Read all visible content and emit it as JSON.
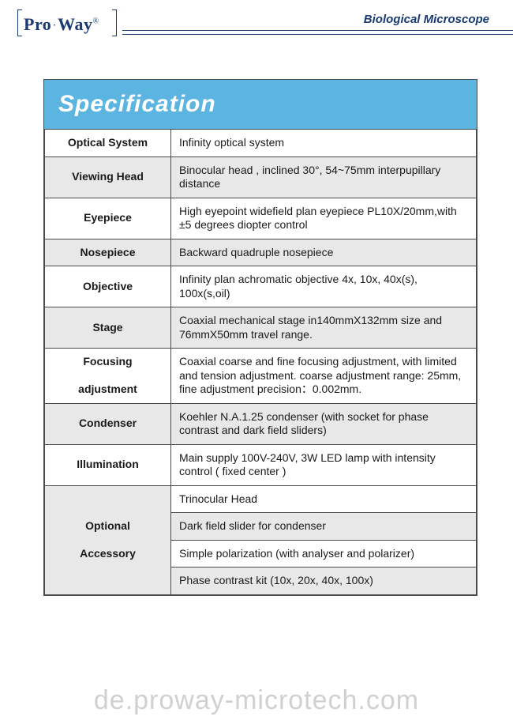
{
  "header": {
    "brand_part1": "Pro",
    "brand_dot": "·",
    "brand_part2": "Way",
    "brand_reg": "®",
    "title": "Biological Microscope"
  },
  "spec": {
    "heading": "Specification",
    "rows": [
      {
        "label": "Optical System",
        "value": "Infinity optical system",
        "label_bg": "#ffffff",
        "value_bg": "#ffffff"
      },
      {
        "label": "Viewing Head",
        "value": "Binocular head , inclined 30°, 54~75mm interpupillary distance",
        "label_bg": "#e8e8e8",
        "value_bg": "#e8e8e8"
      },
      {
        "label": "Eyepiece",
        "value": "High eyepoint widefield plan eyepiece PL10X/20mm,with ±5 degrees diopter control",
        "label_bg": "#ffffff",
        "value_bg": "#ffffff"
      },
      {
        "label": "Nosepiece",
        "value": "Backward quadruple nosepiece",
        "label_bg": "#e8e8e8",
        "value_bg": "#e8e8e8"
      },
      {
        "label": "Objective",
        "value": "Infinity plan achromatic objective 4x, 10x, 40x(s), 100x(s,oil)",
        "label_bg": "#ffffff",
        "value_bg": "#ffffff"
      },
      {
        "label": "Stage",
        "value": "Coaxial mechanical stage in140mmX132mm size and 76mmX50mm travel range.",
        "label_bg": "#e8e8e8",
        "value_bg": "#e8e8e8"
      },
      {
        "label": "Focusing\n\nadjustment",
        "value": "Coaxial coarse and fine focusing adjustment, with limited and tension adjustment. coarse adjustment range: 25mm, fine adjustment precision：0.002mm.",
        "label_bg": "#ffffff",
        "value_bg": "#ffffff"
      },
      {
        "label": "Condenser",
        "value": "Koehler N.A.1.25 condenser (with socket for phase contrast and dark field sliders)",
        "label_bg": "#e8e8e8",
        "value_bg": "#e8e8e8"
      },
      {
        "label": "Illumination",
        "value": "Main supply 100V-240V, 3W LED lamp with intensity control ( fixed center )",
        "label_bg": "#ffffff",
        "value_bg": "#ffffff"
      }
    ],
    "optional": {
      "label": "Optional\n\nAccessory",
      "label_bg": "#e8e8e8",
      "items": [
        {
          "value": "Trinocular Head",
          "bg": "#ffffff"
        },
        {
          "value": "Dark field slider for condenser",
          "bg": "#e8e8e8"
        },
        {
          "value": "Simple polarization (with analyser and polarizer)",
          "bg": "#ffffff"
        },
        {
          "value": "Phase contrast kit (10x, 20x, 40x, 100x)",
          "bg": "#e8e8e8"
        }
      ]
    }
  },
  "watermark": "de.proway-microtech.com",
  "colors": {
    "brand_blue": "#1a3a72",
    "title_bg": "#5cb4e0",
    "title_text": "#ffffff",
    "border": "#4a4a4a",
    "row_grey": "#e8e8e8",
    "row_white": "#ffffff"
  },
  "typography": {
    "heading_fontsize": 30,
    "cell_fontsize": 14,
    "header_title_fontsize": 15,
    "logo_fontsize": 22
  }
}
